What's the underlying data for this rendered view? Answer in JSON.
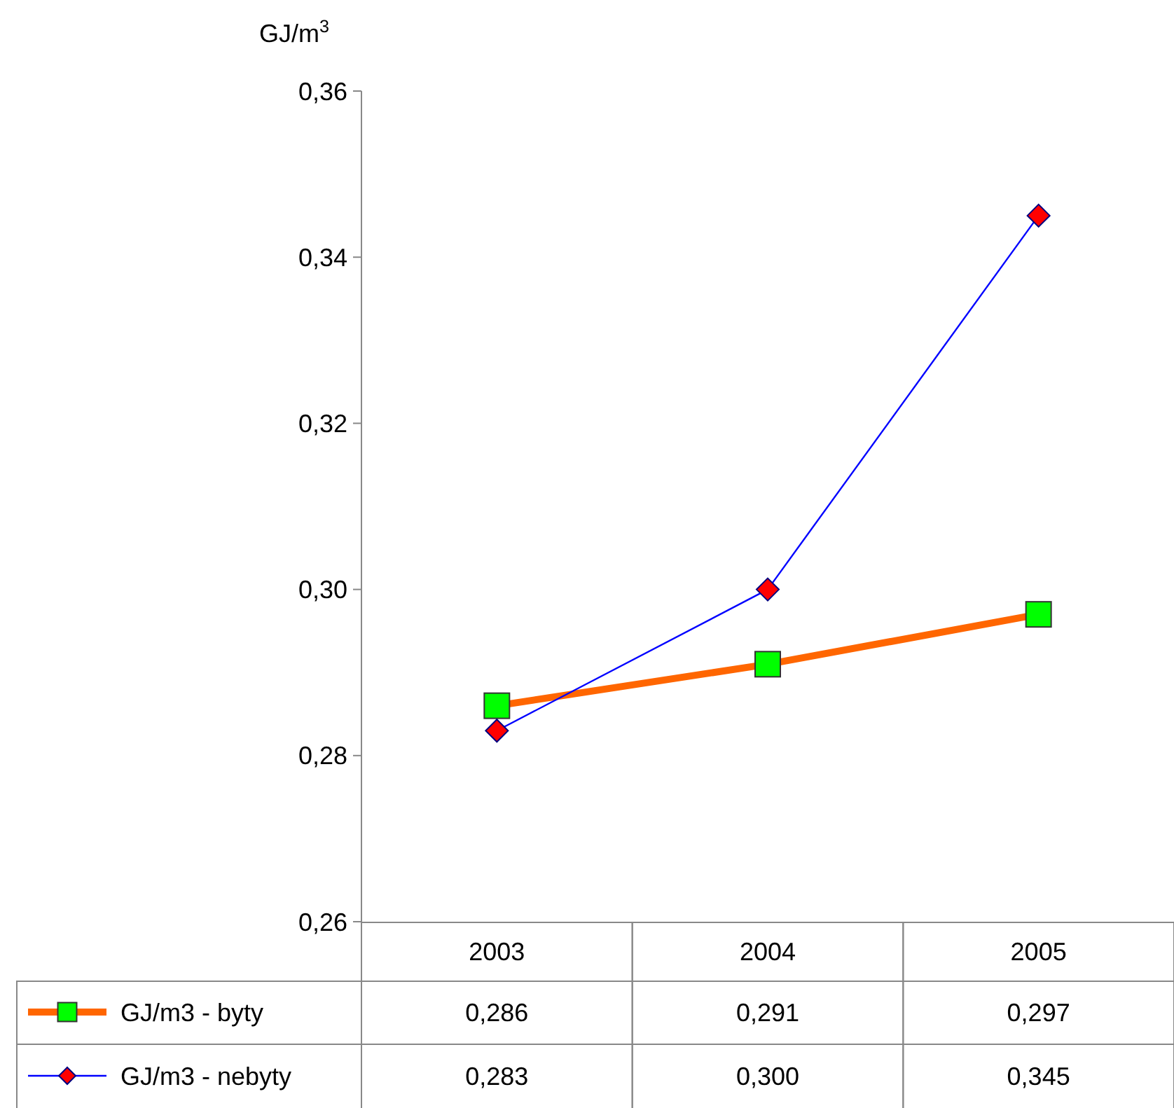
{
  "chart_data": {
    "type": "line",
    "ylabel": "GJ/m$^{3}$",
    "categories": [
      "2003",
      "2004",
      "2005"
    ],
    "ylim": [
      0.26,
      0.36
    ],
    "yticks": [
      {
        "value": 0.26,
        "label": "0,26"
      },
      {
        "value": 0.28,
        "label": "0,28"
      },
      {
        "value": 0.3,
        "label": "0,30"
      },
      {
        "value": 0.32,
        "label": "0,32"
      },
      {
        "value": 0.34,
        "label": "0,34"
      },
      {
        "value": 0.36,
        "label": "0,36"
      }
    ],
    "grid": false,
    "legend": "bottom",
    "series": [
      {
        "name": "GJ/m3 - byty",
        "color": "#ff6600",
        "marker": "square",
        "colors": [
          "#00ff00",
          "#00ff00",
          "#00ff00"
        ],
        "values": [
          0.286,
          0.291,
          0.297
        ],
        "value_labels": [
          "0,286",
          "0,291",
          "0,297"
        ]
      },
      {
        "name": "GJ/m3 - nebyty",
        "color": "#0000ff",
        "marker": "diamond",
        "colors": [
          "#ff0000",
          "#ff0000",
          "#ff0000"
        ],
        "values": [
          0.283,
          0.3,
          0.345
        ],
        "value_labels": [
          "0,283",
          "0,300",
          "0,345"
        ]
      }
    ]
  }
}
